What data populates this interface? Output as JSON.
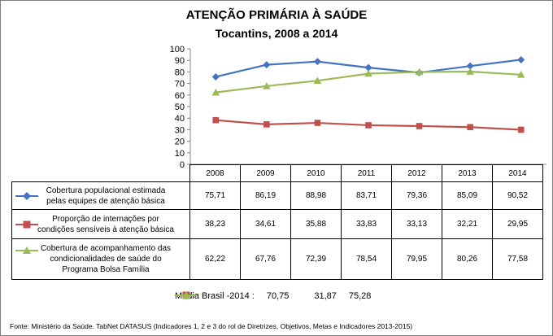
{
  "chart_data": {
    "type": "line",
    "title": "ATENÇÃO PRIMÁRIA À SAÚDE",
    "subtitle": "Tocantins, 2008 a 2014",
    "categories": [
      "2008",
      "2009",
      "2010",
      "2011",
      "2012",
      "2013",
      "2014"
    ],
    "ylim": [
      0,
      100
    ],
    "yticks": [
      "0",
      "10",
      "20",
      "30",
      "40",
      "50",
      "60",
      "70",
      "80",
      "90",
      "100"
    ],
    "grid": false,
    "series": [
      {
        "name": "Cobertura populacional estimada pelas equipes de atenção básica",
        "label_lines": [
          "Cobertura  populacional estimada",
          "pelas equipes de atenção básica"
        ],
        "color": "#4472c4",
        "marker": "diamond",
        "values": [
          75.71,
          86.19,
          88.98,
          83.71,
          79.36,
          85.09,
          90.52
        ],
        "value_labels": [
          "75,71",
          "86,19",
          "88,98",
          "83,71",
          "79,36",
          "85,09",
          "90,52"
        ]
      },
      {
        "name": "Proporção de internações por condições sensíveis à atenção básica",
        "label_lines": [
          "Proporção de internações por",
          "condições sensíveis  à atenção básica"
        ],
        "color": "#c0504d",
        "marker": "square",
        "values": [
          38.23,
          34.61,
          35.88,
          33.83,
          33.13,
          32.21,
          29.95
        ],
        "value_labels": [
          "38,23",
          "34,61",
          "35,88",
          "33,83",
          "33,13",
          "32,21",
          "29,95"
        ]
      },
      {
        "name": "Cobertura de acompanhamento das condicionalidades de saúde do Programa Bolsa Família",
        "label_lines": [
          "Cobertura de acompanhamento das",
          "condicionalidades de saúde do",
          "Programa Bolsa Família"
        ],
        "color": "#9bbb59",
        "marker": "triangle",
        "values": [
          62.22,
          67.76,
          72.39,
          78.54,
          79.95,
          80.26,
          77.58
        ],
        "value_labels": [
          "62,22",
          "67,76",
          "72,39",
          "78,54",
          "79,95",
          "80,26",
          "77,58"
        ]
      }
    ],
    "legend": {
      "label": "Média Brasil -2014 :",
      "values": [
        "70,75",
        "31,87",
        "75,28"
      ]
    }
  },
  "source": "Fonte: Ministério da Saúde. TabNet DATASUS (Indicadores 1, 2 e 3 do rol de Diretrizes, Objetivos, Metas e Indicadores 2013-2015)"
}
